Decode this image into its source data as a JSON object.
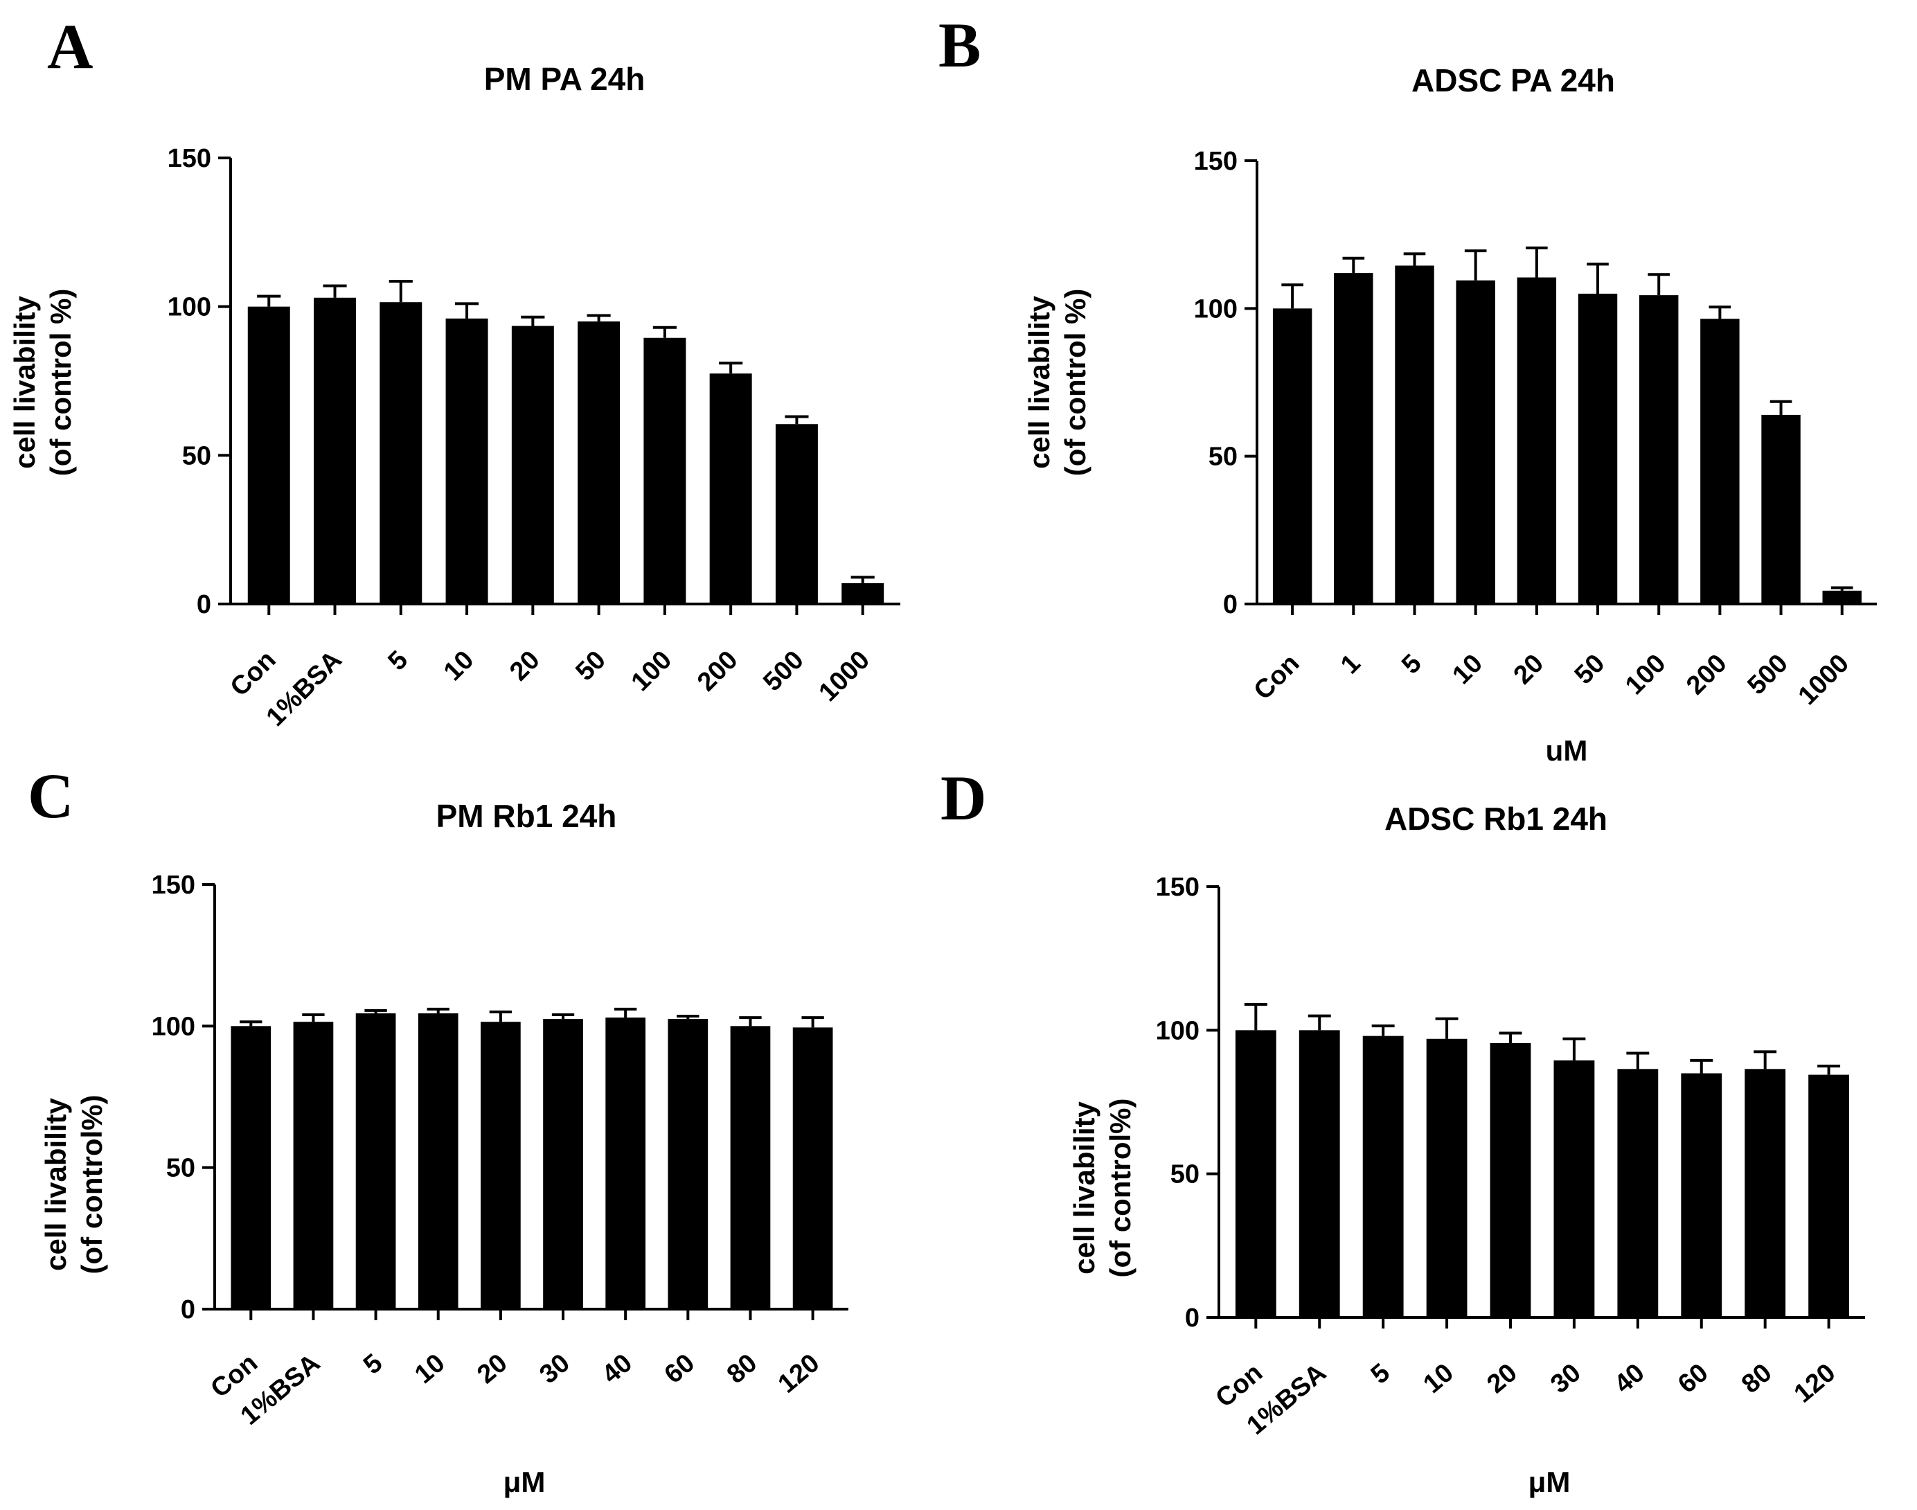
{
  "chart_data": [
    {
      "panel": "A",
      "type": "bar",
      "title": "PM PA 24h",
      "ylabel_line1": "cell livability",
      "ylabel_line2": "(of control %)",
      "xlabel": "",
      "ylim": [
        0,
        150
      ],
      "yticks": [
        0,
        50,
        100,
        150
      ],
      "categories": [
        "Con",
        "1%BSA",
        "5",
        "10",
        "20",
        "50",
        "100",
        "200",
        "500",
        "1000"
      ],
      "values": [
        100,
        103,
        101.5,
        96,
        93.5,
        95,
        89.5,
        77.5,
        60.5,
        7
      ],
      "errors": [
        3.5,
        4,
        7,
        5,
        3,
        2,
        3.5,
        3.5,
        2.5,
        2
      ]
    },
    {
      "panel": "B",
      "type": "bar",
      "title": "ADSC PA 24h",
      "ylabel_line1": "cell livability",
      "ylabel_line2": "(of control %)",
      "xlabel": "uM",
      "ylim": [
        0,
        150
      ],
      "yticks": [
        0,
        50,
        100,
        150
      ],
      "categories": [
        "Con",
        "1",
        "5",
        "10",
        "20",
        "50",
        "100",
        "200",
        "500",
        "1000"
      ],
      "values": [
        100,
        112,
        114.5,
        109.5,
        110.5,
        105,
        104.5,
        96.5,
        64,
        4.5
      ],
      "errors": [
        8,
        5,
        4,
        10,
        10,
        10,
        7,
        4,
        4.5,
        1
      ]
    },
    {
      "panel": "C",
      "type": "bar",
      "title": "PM Rb1 24h",
      "ylabel_line1": "cell livability",
      "ylabel_line2": "(of control%)",
      "xlabel": "μM",
      "ylim": [
        0,
        150
      ],
      "yticks": [
        0,
        50,
        100,
        150
      ],
      "categories": [
        "Con",
        "1%BSA",
        "5",
        "10",
        "20",
        "30",
        "40",
        "60",
        "80",
        "120"
      ],
      "values": [
        100,
        101.5,
        104.5,
        104.5,
        101.5,
        102.5,
        103,
        102.5,
        100,
        99.5
      ],
      "errors": [
        1.5,
        2.5,
        1,
        1.5,
        3.5,
        1.5,
        3,
        1,
        3,
        3.5
      ]
    },
    {
      "panel": "D",
      "type": "bar",
      "title": "ADSC Rb1 24h",
      "ylabel_line1": "cell livability",
      "ylabel_line2": "(of control%)",
      "xlabel": "μM",
      "ylim": [
        0,
        150
      ],
      "yticks": [
        0,
        50,
        100,
        150
      ],
      "categories": [
        "Con",
        "1%BSA",
        "5",
        "10",
        "20",
        "30",
        "40",
        "60",
        "80",
        "120"
      ],
      "values": [
        100,
        100,
        98,
        97,
        95.5,
        89.5,
        86.5,
        85,
        86.5,
        84.5
      ],
      "errors": [
        9,
        5,
        3.5,
        7,
        3.5,
        7.5,
        5.5,
        4.5,
        6,
        3
      ]
    }
  ]
}
